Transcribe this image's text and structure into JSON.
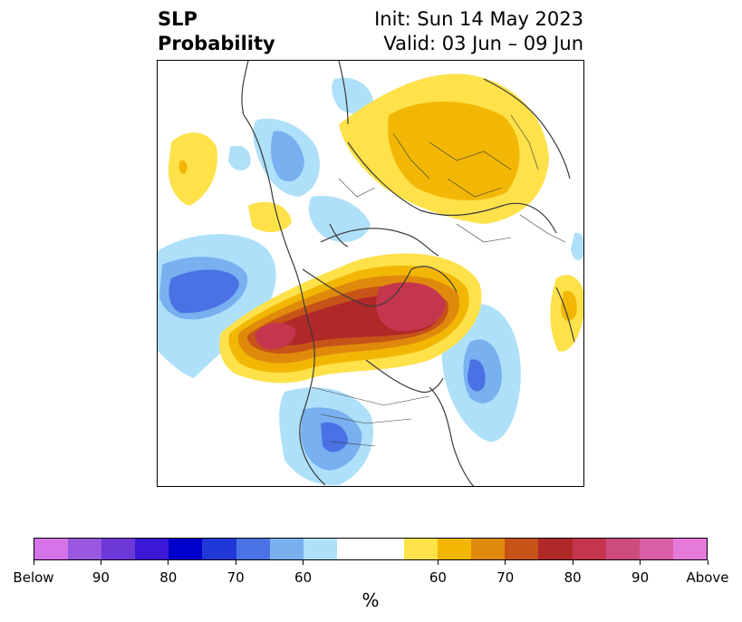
{
  "title": {
    "left_line1": "SLP",
    "left_line2": "Probability",
    "right_line1": "Init: Sun 14 May 2023",
    "right_line2": "Valid: 03 Jun – 09 Jun"
  },
  "colorbar": {
    "unit": "%",
    "colors": [
      "#d573e8",
      "#9a58e0",
      "#6c38d8",
      "#3a18d6",
      "#0000cc",
      "#2038d8",
      "#4a72e4",
      "#78b0f0",
      "#aee0fa",
      "#ffffff",
      "#ffffff",
      "#ffe14a",
      "#f2b705",
      "#e08a0c",
      "#c65418",
      "#b02828",
      "#c4364e",
      "#cc4c7c",
      "#db5ea8",
      "#e67ada"
    ],
    "tick_labels": [
      "Below",
      "90",
      "80",
      "70",
      "60",
      "60",
      "70",
      "80",
      "90",
      "Above"
    ]
  },
  "map": {
    "description_colors": {
      "above_strong": "#b02828",
      "above_mid": "#c65418",
      "above_low": "#f2b705",
      "above_faint": "#ffe14a",
      "below_faint": "#aee0fa",
      "below_low": "#78b0f0",
      "below_mid": "#4a72e4"
    }
  }
}
